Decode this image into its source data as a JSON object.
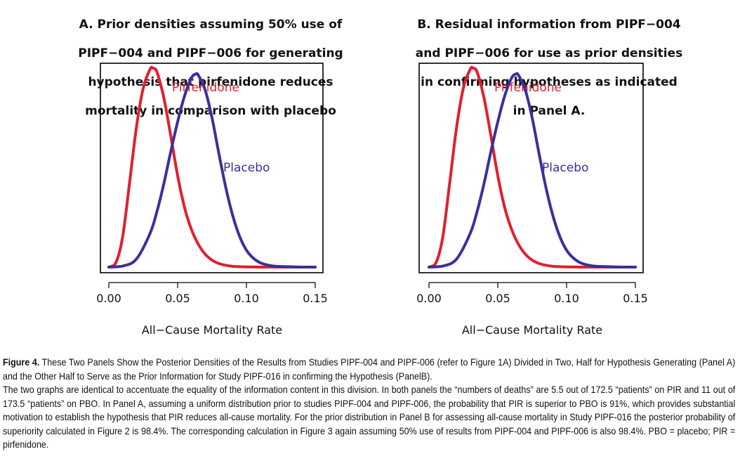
{
  "panels": [
    {
      "title": "A. Prior densities assuming 50% use of PIPF-004 and PIPF-006 for generating hypothesis that pirfenidone reduces mortality in comparison with placebo",
      "title_lines": [
        "A. Prior densities assuming 50% use of",
        "PIPF−004 and PIPF−006 for generating",
        "hypothesis that pirfenidone reduces",
        "mortality in comparison with placebo"
      ]
    },
    {
      "title": "B. Residual information from PIPF-004 and PIPF-006 for use as prior densities in confirming hypotheses as indicated in Panel A.",
      "title_lines": [
        "B. Residual information from PIPF−004",
        "and PIPF−006 for use as prior densities",
        "in confirming hypotheses as indicated",
        "in Panel A."
      ]
    }
  ],
  "chart_data": [
    {
      "type": "line",
      "title": "A. Prior densities assuming 50% use of PIPF−004 and PIPF−006 for generating hypothesis that pirfenidone reduces mortality in comparison with placebo",
      "xlabel": "All−Cause Mortality Rate",
      "ylabel": "",
      "xlim": [
        0.0,
        0.15
      ],
      "xticks": [
        0.0,
        0.05,
        0.1,
        0.15
      ],
      "xtick_labels": [
        "0.00",
        "0.05",
        "0.10",
        "0.15"
      ],
      "ylim": [
        0,
        1.0
      ],
      "grid": false,
      "series": [
        {
          "name": "Pirfenidone",
          "color": "#e0202c",
          "x": [
            0.0,
            0.005,
            0.01,
            0.015,
            0.02,
            0.025,
            0.03,
            0.032,
            0.035,
            0.04,
            0.045,
            0.05,
            0.055,
            0.06,
            0.065,
            0.07,
            0.075,
            0.08,
            0.085,
            0.09,
            0.095,
            0.1,
            0.11,
            0.12,
            0.13,
            0.15
          ],
          "y": [
            0.0,
            0.02,
            0.15,
            0.42,
            0.7,
            0.9,
            0.995,
            1.0,
            0.98,
            0.85,
            0.66,
            0.46,
            0.3,
            0.19,
            0.115,
            0.065,
            0.035,
            0.018,
            0.009,
            0.004,
            0.002,
            0.001,
            0.0,
            0.0,
            0.0,
            0.0
          ]
        },
        {
          "name": "Placebo",
          "color": "#3c2f9c",
          "x": [
            0.0,
            0.01,
            0.02,
            0.03,
            0.035,
            0.04,
            0.045,
            0.05,
            0.055,
            0.06,
            0.063,
            0.065,
            0.07,
            0.075,
            0.08,
            0.085,
            0.09,
            0.095,
            0.1,
            0.105,
            0.11,
            0.115,
            0.12,
            0.13,
            0.14,
            0.15
          ],
          "y": [
            0.0,
            0.005,
            0.04,
            0.17,
            0.28,
            0.42,
            0.58,
            0.73,
            0.86,
            0.95,
            0.97,
            0.965,
            0.89,
            0.75,
            0.57,
            0.4,
            0.26,
            0.155,
            0.085,
            0.045,
            0.022,
            0.011,
            0.005,
            0.002,
            0.0,
            0.0
          ]
        }
      ]
    },
    {
      "type": "line",
      "title": "B. Residual information from PIPF−004 and PIPF−006 for use as prior densities in confirming hypotheses as indicated in Panel A.",
      "xlabel": "All−Cause Mortality Rate",
      "ylabel": "",
      "xlim": [
        0.0,
        0.15
      ],
      "xticks": [
        0.0,
        0.05,
        0.1,
        0.15
      ],
      "xtick_labels": [
        "0.00",
        "0.05",
        "0.10",
        "0.15"
      ],
      "ylim": [
        0,
        1.0
      ],
      "grid": false,
      "series": [
        {
          "name": "Pirfenidone",
          "color": "#e0202c",
          "x": [
            0.0,
            0.005,
            0.01,
            0.015,
            0.02,
            0.025,
            0.03,
            0.032,
            0.035,
            0.04,
            0.045,
            0.05,
            0.055,
            0.06,
            0.065,
            0.07,
            0.075,
            0.08,
            0.085,
            0.09,
            0.095,
            0.1,
            0.11,
            0.12,
            0.13,
            0.15
          ],
          "y": [
            0.0,
            0.02,
            0.15,
            0.42,
            0.7,
            0.9,
            0.995,
            1.0,
            0.98,
            0.85,
            0.66,
            0.46,
            0.3,
            0.19,
            0.115,
            0.065,
            0.035,
            0.018,
            0.009,
            0.004,
            0.002,
            0.001,
            0.0,
            0.0,
            0.0,
            0.0
          ]
        },
        {
          "name": "Placebo",
          "color": "#3c2f9c",
          "x": [
            0.0,
            0.01,
            0.02,
            0.03,
            0.035,
            0.04,
            0.045,
            0.05,
            0.055,
            0.06,
            0.063,
            0.065,
            0.07,
            0.075,
            0.08,
            0.085,
            0.09,
            0.095,
            0.1,
            0.105,
            0.11,
            0.115,
            0.12,
            0.13,
            0.14,
            0.15
          ],
          "y": [
            0.0,
            0.005,
            0.04,
            0.17,
            0.28,
            0.42,
            0.58,
            0.73,
            0.86,
            0.95,
            0.97,
            0.965,
            0.89,
            0.75,
            0.57,
            0.4,
            0.26,
            0.155,
            0.085,
            0.045,
            0.022,
            0.011,
            0.005,
            0.002,
            0.0,
            0.0
          ]
        }
      ]
    }
  ],
  "caption": {
    "figure_label": "Figure 4.",
    "figure_title": "These Two Panels Show the Posterior Densities of the Results from Studies PIPF-004 and PIPF-006 (refer to Figure 1A) Divided in Two, Half for Hypothesis Generating (Panel A) and the Other Half to Serve as the Prior Information for Study PIPF-016 in confirming the Hypothesis (PanelB).",
    "body": "The two graphs are identical to accentuate the equality of the information content in this division. In both panels the “numbers of deaths” are 5.5 out of 172.5 “patients” on PIR and 11 out of 173.5 “patients” on PBO. In Panel A, assuming a uniform distribution prior to studies PIPF-004 and PIPF-006, the probability that PIR is superior to PBO is 91%, which provides substantial motivation to establish the hypothesis that PIR reduces all-cause mortality. For the prior distribution in Panel B for assessing all-cause mortality in Study PIPF-016 the posterior probability of superiority calculated in Figure 2 is 98.4%. The corresponding calculation in Figure 3 again assuming 50% use of results from PIPF-004 and PIPF-006 is also 98.4%. PBO = placebo; PIR = pirfenidone."
  }
}
